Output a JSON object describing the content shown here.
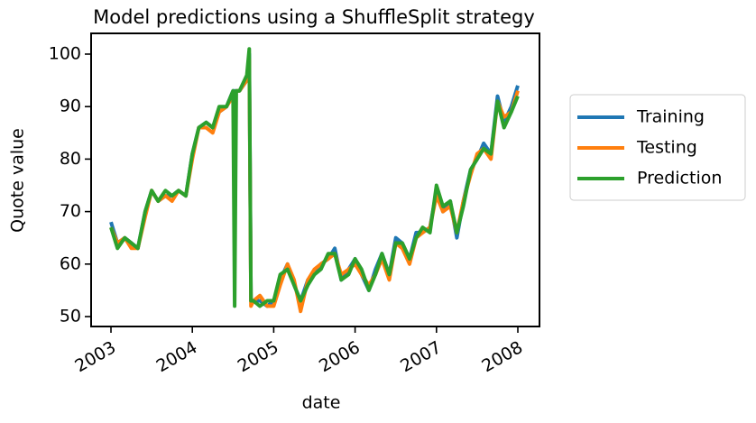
{
  "chart_data": {
    "type": "line",
    "title": "Model predictions using a ShuffleSplit strategy",
    "x_label": "date",
    "y_label": "Quote value",
    "x": [
      2003.0,
      2003.08,
      2003.17,
      2003.25,
      2003.33,
      2003.42,
      2003.5,
      2003.58,
      2003.67,
      2003.75,
      2003.83,
      2003.92,
      2004.0,
      2004.08,
      2004.17,
      2004.25,
      2004.33,
      2004.42,
      2004.5,
      2004.52,
      2004.54,
      2004.58,
      2004.67,
      2004.7,
      2004.72,
      2004.75,
      2004.83,
      2004.92,
      2005.0,
      2005.08,
      2005.17,
      2005.25,
      2005.33,
      2005.42,
      2005.5,
      2005.58,
      2005.67,
      2005.75,
      2005.83,
      2005.92,
      2006.0,
      2006.08,
      2006.17,
      2006.25,
      2006.33,
      2006.42,
      2006.5,
      2006.58,
      2006.67,
      2006.75,
      2006.83,
      2006.92,
      2007.0,
      2007.08,
      2007.17,
      2007.25,
      2007.33,
      2007.42,
      2007.5,
      2007.58,
      2007.67,
      2007.75,
      2007.83,
      2007.92,
      2008.0
    ],
    "series": [
      {
        "name": "Training",
        "color": "#1f77b4",
        "values": [
          68,
          64,
          65,
          64,
          63,
          70,
          74,
          72,
          73,
          73,
          74,
          73,
          81,
          86,
          87,
          86,
          89,
          90,
          93,
          93,
          93,
          93,
          95,
          100,
          53,
          53,
          53,
          52,
          53,
          57,
          60,
          56,
          53,
          57,
          58,
          60,
          61,
          63,
          57,
          59,
          61,
          58,
          55,
          59,
          62,
          58,
          65,
          64,
          61,
          66,
          66,
          67,
          74,
          70,
          72,
          65,
          72,
          78,
          80,
          83,
          81,
          92,
          87,
          90,
          94
        ]
      },
      {
        "name": "Testing",
        "color": "#ff7f0e",
        "values": [
          67,
          64,
          65,
          63,
          63,
          69,
          74,
          72,
          73,
          72,
          74,
          73,
          80,
          86,
          86,
          85,
          89,
          90,
          92,
          92,
          93,
          93,
          95,
          99,
          52,
          53,
          54,
          52,
          52,
          56,
          60,
          57,
          51,
          57,
          59,
          60,
          61,
          62,
          58,
          59,
          60,
          58,
          56,
          58,
          61,
          57,
          64,
          63,
          60,
          65,
          66,
          67,
          73,
          70,
          71,
          66,
          72,
          77,
          81,
          82,
          80,
          91,
          88,
          89,
          93
        ]
      },
      {
        "name": "Prediction",
        "color": "#2ca02c",
        "values": [
          67,
          63,
          65,
          64,
          63,
          70,
          74,
          72,
          74,
          73,
          74,
          73,
          81,
          86,
          87,
          86,
          90,
          90,
          93,
          52,
          93,
          93,
          96,
          101,
          53,
          53,
          52,
          53,
          53,
          58,
          59,
          56,
          53,
          56,
          58,
          59,
          62,
          62,
          57,
          58,
          61,
          59,
          55,
          58,
          62,
          58,
          64,
          64,
          61,
          65,
          67,
          66,
          75,
          71,
          72,
          66,
          71,
          78,
          80,
          82,
          81,
          91,
          86,
          89,
          92
        ]
      }
    ],
    "xlim": [
      2002.756,
      2008.266
    ],
    "xticks": [
      2003,
      2004,
      2005,
      2006,
      2007,
      2008
    ],
    "ylim": [
      48.11,
      103.95
    ],
    "yticks": [
      50,
      60,
      70,
      80,
      90,
      100
    ],
    "legend": "outside right"
  }
}
